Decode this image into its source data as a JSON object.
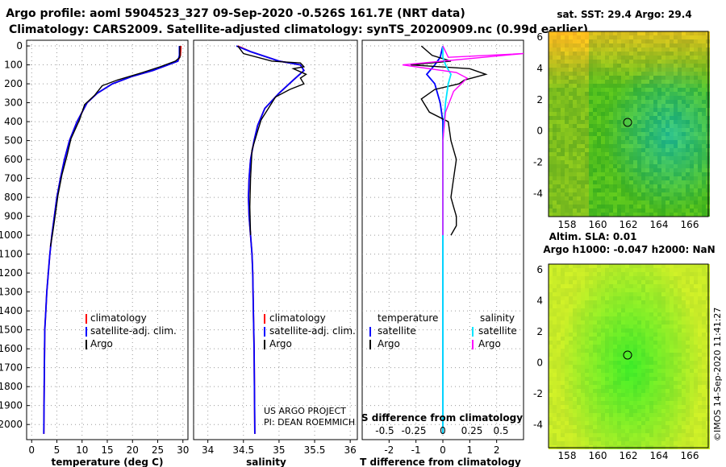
{
  "header": {
    "line1": "Argo profile: aoml 5904523_327 09-Sep-2020 -0.526S 161.7E (NRT data)",
    "line2": "Climatology: CARS2009. Satellite-adjusted climatology: synTS_20200909.nc (0.99d earlier)"
  },
  "colors": {
    "climatology": "#ff0000",
    "satellite": "#0000ff",
    "argo": "#000000",
    "sat_salinity": "#00e5ff",
    "argo_salinity": "#ff00ff"
  },
  "depth_ticks": [
    0,
    100,
    200,
    300,
    400,
    500,
    600,
    700,
    800,
    900,
    1000,
    1100,
    1200,
    1300,
    1400,
    1500,
    1600,
    1700,
    1800,
    1900,
    2000
  ],
  "legend_main": {
    "climatology": "climatology",
    "satellite": "satellite-adj. clim.",
    "argo": "Argo"
  },
  "legend_diff": {
    "temperature": "temperature",
    "salinity": "salinity",
    "satellite": "satellite",
    "argo": "Argo"
  },
  "credit": {
    "line1": "US ARGO PROJECT",
    "line2": "PI: DEAN ROEMMICH"
  },
  "maps": {
    "top_title": "sat. SST: 29.4 Argo: 29.4",
    "bottom_title1": "Altim. SLA: 0.01",
    "bottom_title2": "Argo h1000: -0.047 h2000: NaN",
    "x_ticks": [
      "158",
      "160",
      "162",
      "164",
      "166"
    ],
    "y_ticks": [
      "6",
      "4",
      "2",
      "0",
      "-2",
      "-4"
    ]
  },
  "stamp": "©IMOS 14-Sep-2020 11:41:27",
  "chart_data": [
    {
      "type": "line",
      "xlabel": "temperature (deg C)",
      "ylabel": "",
      "xlim": [
        -1,
        31
      ],
      "ylim": [
        2080,
        -30
      ],
      "x_ticks": [
        0,
        5,
        10,
        15,
        20,
        25,
        30
      ],
      "series": [
        {
          "name": "climatology",
          "x": [
            29.6,
            29.5,
            29.0,
            27.0,
            24.0,
            20.0,
            16.0,
            13.0,
            11.0,
            9.0,
            7.5,
            6.5,
            5.7,
            5.0,
            4.5,
            4.0,
            3.6,
            3.3,
            3.0,
            2.8,
            2.6,
            2.5,
            2.4
          ],
          "y": [
            0,
            50,
            80,
            100,
            130,
            160,
            200,
            250,
            300,
            400,
            500,
            600,
            700,
            800,
            900,
            1000,
            1100,
            1200,
            1300,
            1400,
            1500,
            1750,
            2050
          ]
        },
        {
          "name": "satellite-adj. clim.",
          "x": [
            29.3,
            29.3,
            29.0,
            27.0,
            24.0,
            20.0,
            16.0,
            13.0,
            11.0,
            9.0,
            7.5,
            6.5,
            5.7,
            5.0,
            4.5,
            4.0,
            3.6,
            3.3,
            3.0,
            2.8,
            2.6,
            2.5,
            2.4
          ],
          "y": [
            0,
            50,
            80,
            100,
            130,
            160,
            200,
            250,
            300,
            400,
            500,
            600,
            700,
            800,
            900,
            1000,
            1100,
            1200,
            1300,
            1400,
            1500,
            1750,
            2050
          ]
        },
        {
          "name": "Argo",
          "x": [
            29.4,
            29.4,
            28.5,
            25.5,
            22.0,
            17.0,
            14.0,
            12.5,
            10.5,
            9.5,
            7.8,
            7.0,
            6.0,
            5.2,
            4.7,
            4.1,
            3.7
          ],
          "y": [
            0,
            60,
            80,
            110,
            140,
            180,
            210,
            260,
            310,
            390,
            490,
            580,
            680,
            790,
            890,
            1000,
            1060
          ]
        }
      ]
    },
    {
      "type": "line",
      "xlabel": "salinity",
      "ylabel": "",
      "xlim": [
        33.8,
        36.1
      ],
      "ylim": [
        2080,
        -30
      ],
      "x_ticks": [
        34,
        34.5,
        35,
        35.5,
        36
      ],
      "series": [
        {
          "name": "climatology",
          "x": [
            34.42,
            34.6,
            35.0,
            35.3,
            35.35,
            35.2,
            35.0,
            34.8,
            34.7,
            34.65,
            34.6,
            34.58,
            34.57,
            34.58,
            34.6,
            34.62,
            34.63,
            34.64,
            34.65,
            34.66
          ],
          "y": [
            0,
            30,
            80,
            100,
            130,
            180,
            250,
            330,
            420,
            500,
            600,
            700,
            800,
            900,
            1000,
            1100,
            1200,
            1400,
            1600,
            2050
          ]
        },
        {
          "name": "satellite-adj. clim.",
          "x": [
            34.4,
            34.6,
            35.0,
            35.3,
            35.35,
            35.2,
            35.0,
            34.8,
            34.7,
            34.65,
            34.6,
            34.58,
            34.57,
            34.58,
            34.6,
            34.62,
            34.63,
            34.64,
            34.65,
            34.66
          ],
          "y": [
            0,
            30,
            80,
            100,
            130,
            180,
            250,
            330,
            420,
            500,
            600,
            700,
            800,
            900,
            1000,
            1100,
            1200,
            1400,
            1600,
            2050
          ]
        },
        {
          "name": "Argo",
          "x": [
            34.42,
            34.5,
            34.9,
            35.3,
            35.35,
            35.2,
            35.38,
            35.3,
            35.35,
            35.15,
            34.95,
            34.85,
            34.75,
            34.7,
            34.62,
            34.6,
            34.59,
            34.6
          ],
          "y": [
            0,
            40,
            80,
            90,
            110,
            120,
            150,
            170,
            200,
            230,
            270,
            330,
            390,
            450,
            550,
            700,
            850,
            1000
          ]
        }
      ]
    },
    {
      "type": "line",
      "xlabel": "T difference from climatology",
      "ylabel": "",
      "title": "S difference from climatology",
      "xlim": [
        -3,
        3
      ],
      "ylim": [
        2080,
        -30
      ],
      "x_ticks": [
        -2,
        -1,
        0,
        1,
        2
      ],
      "x_top_ticks": [
        "-0.5",
        "-0.25",
        "0",
        "0.25",
        "0.5"
      ],
      "series": [
        {
          "name": "temperature satellite",
          "x": [
            0,
            -0.1,
            -0.3,
            -0.6,
            -0.3,
            -0.2,
            -0.1,
            0,
            0,
            0,
            0
          ],
          "y": [
            0,
            60,
            100,
            150,
            200,
            250,
            300,
            400,
            600,
            1000,
            2050
          ]
        },
        {
          "name": "temperature Argo",
          "x": [
            -0.8,
            -0.4,
            0.3,
            -1.2,
            1.0,
            1.6,
            0.8,
            0.6,
            -0.3,
            -0.8,
            -0.5,
            0.2,
            0.3,
            0.5,
            0.4,
            0.3,
            0.4,
            0.5,
            0.5,
            0.3
          ],
          "y": [
            0,
            50,
            80,
            100,
            120,
            150,
            180,
            200,
            230,
            280,
            350,
            400,
            500,
            600,
            700,
            800,
            850,
            900,
            950,
            1000
          ]
        },
        {
          "name": "salinity satellite",
          "x": [
            0,
            0,
            0.1,
            0.3,
            0.2,
            0.1,
            0,
            0,
            0
          ],
          "y": [
            0,
            60,
            100,
            150,
            200,
            300,
            500,
            1000,
            2050
          ]
        },
        {
          "name": "salinity Argo",
          "x": [
            0,
            0.2,
            3.0,
            -1.5,
            0.5,
            0.9,
            0.4,
            0.1,
            0,
            0,
            0
          ],
          "y": [
            0,
            60,
            40,
            100,
            140,
            170,
            240,
            350,
            500,
            800,
            1000
          ]
        }
      ]
    }
  ]
}
